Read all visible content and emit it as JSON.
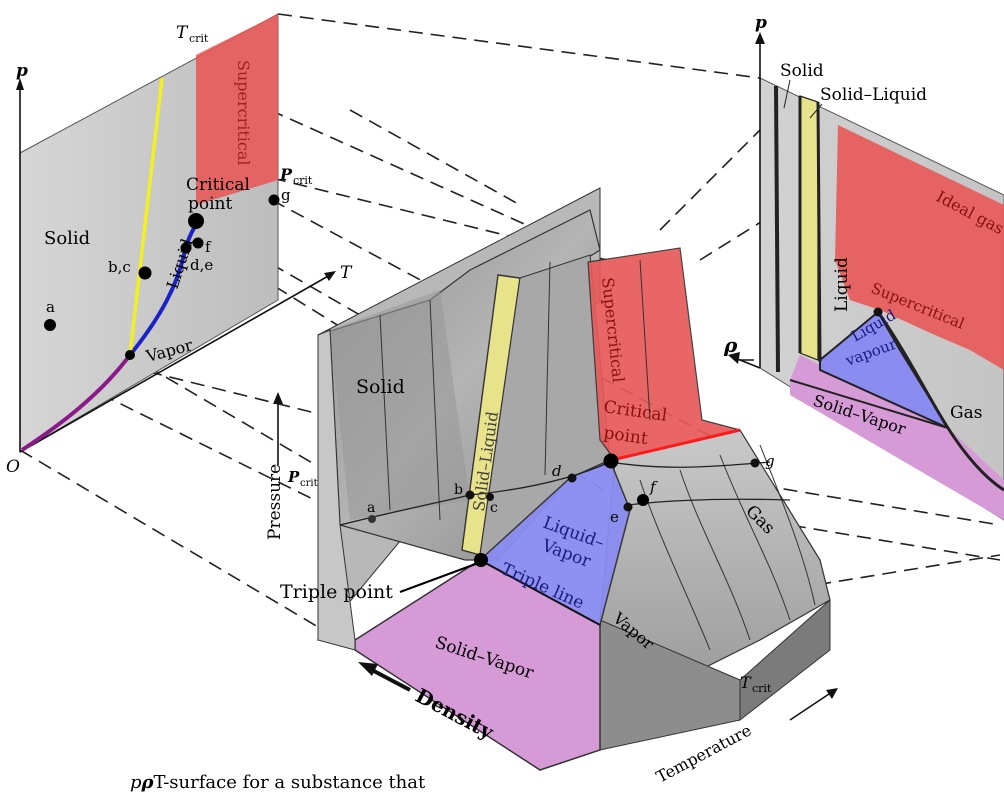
{
  "left_panel": {
    "axis_p": "p",
    "axis_T": "T",
    "origin": "O",
    "t_crit": "T",
    "t_crit_sub": "crit",
    "p_crit": "P",
    "p_crit_sub": "crit",
    "region_solid": "Solid",
    "region_liquid": "Liquid",
    "region_vapor": "Vapor",
    "region_supercritical": "Supercritical",
    "critical_point_line1": "Critical",
    "critical_point_line2": "point",
    "point_a": "a",
    "point_bc": "b,c",
    "point_de": "d,e",
    "point_f": "f",
    "point_g": "g"
  },
  "center_surface": {
    "region_solid": "Solid",
    "region_solid_liquid": "Solid–Liquid",
    "region_supercritical": "Supercritical",
    "critical_point_line1": "Critical",
    "critical_point_line2": "point",
    "region_liquid_vapor_line1": "Liquid–",
    "region_liquid_vapor_line2": "Vapor",
    "triple_line": "Triple line",
    "triple_point": "Triple point",
    "region_solid_vapor": "Solid–Vapor",
    "region_vapor": "Vapor",
    "region_gas": "Gas",
    "p_crit": "P",
    "p_crit_sub": "crit",
    "t_crit": "T",
    "t_crit_sub": "crit",
    "axis_pressure": "Pressure",
    "axis_density": "Density",
    "axis_temperature": "Temperature",
    "point_a": "a",
    "point_b": "b",
    "point_c": "c",
    "point_d": "d",
    "point_e": "e",
    "point_f": "f",
    "point_g": "g"
  },
  "right_panel": {
    "axis_p": "p",
    "axis_rho": "ρ",
    "region_solid": "Solid",
    "region_solid_liquid": "Solid–Liquid",
    "region_liquid": "Liquid",
    "region_ideal_gas": "Ideal gas",
    "region_supercritical": "Supercritical",
    "region_liquid_vapour_line1": "Liquid",
    "region_liquid_vapour_line2": "vapour",
    "region_gas": "Gas",
    "region_solid_vapor": "Solid–Vapor"
  },
  "caption": {
    "p": "p",
    "rho": "ρ",
    "rest": "T-surface for a substance that"
  },
  "colors": {
    "supercritical": "#e85a5a",
    "liquid_vapor": "#8a8cf0",
    "solid_vapor": "#d69ad6",
    "solid_liquid": "#e8e28a",
    "fusion_line": "#f2f020",
    "vaporization_line": "#1a22c8",
    "sublimation_line": "#8a1a8a",
    "surface_gray": "#9a9a9a"
  }
}
